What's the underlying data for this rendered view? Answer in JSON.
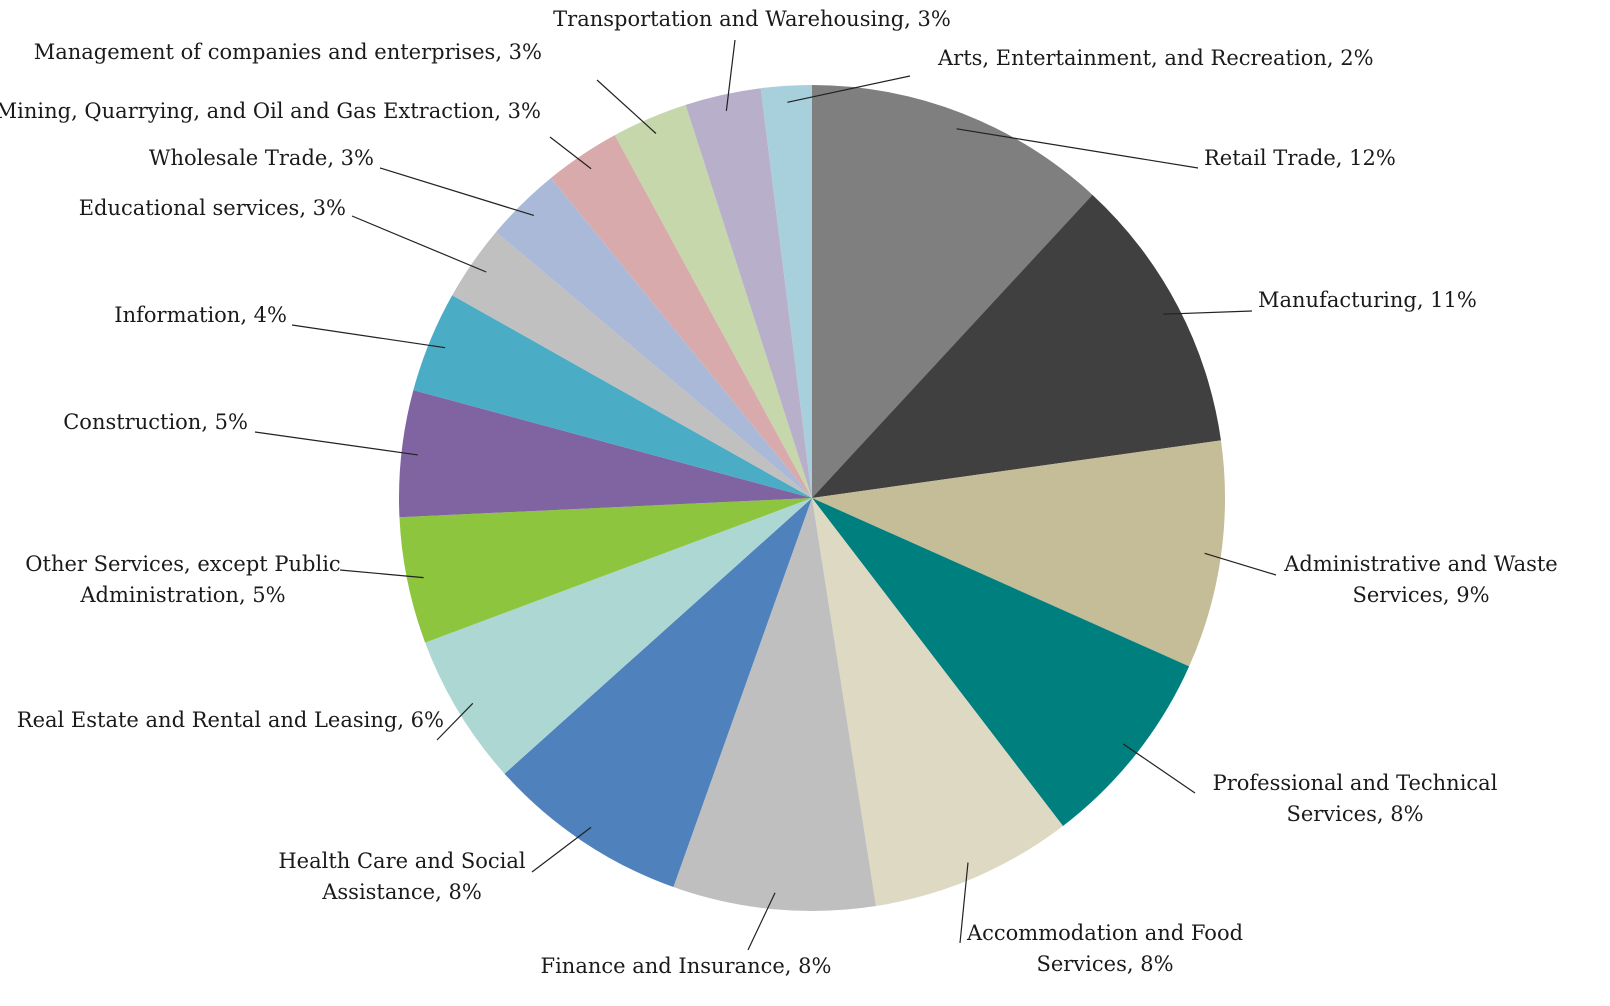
{
  "chart_data": {
    "type": "pie",
    "categories": [
      "Retail Trade",
      "Manufacturing",
      "Administrative and Waste Services",
      "Professional and Technical Services",
      "Accommodation and Food Services",
      "Finance and Insurance",
      "Health Care and Social Assistance",
      "Real Estate and Rental and Leasing",
      "Other Services, except Public Administration",
      "Construction",
      "Information",
      "Educational services",
      "Wholesale Trade",
      "Mining, Quarrying, and Oil and Gas Extraction",
      "Management of companies and enterprises",
      "Transportation and Warehousing",
      "Arts, Entertainment, and Recreation"
    ],
    "values": [
      12,
      11,
      9,
      8,
      8,
      8,
      8,
      6,
      5,
      5,
      4,
      3,
      3,
      3,
      3,
      3,
      2
    ],
    "value_labels": [
      [
        "Retail Trade, 12%"
      ],
      [
        "Manufacturing, 11%"
      ],
      [
        "Administrative and Waste",
        "Services, 9%"
      ],
      [
        "Professional and Technical",
        "Services, 8%"
      ],
      [
        "Accommodation and Food",
        "Services, 8%"
      ],
      [
        "Finance and Insurance, 8%"
      ],
      [
        "Health Care and Social",
        "Assistance, 8%"
      ],
      [
        "Real Estate and Rental and Leasing, 6%"
      ],
      [
        "Other Services, except Public",
        "Administration, 5%"
      ],
      [
        "Construction, 5%"
      ],
      [
        "Information, 4%"
      ],
      [
        "Educational services, 3%"
      ],
      [
        "Wholesale Trade, 3%"
      ],
      [
        "Mining, Quarrying, and Oil and Gas Extraction, 3%"
      ],
      [
        "Management of companies and enterprises, 3%"
      ],
      [
        "Transportation and Warehousing, 3%"
      ],
      [
        "Arts, Entertainment, and Recreation, 2%"
      ]
    ],
    "colors": [
      "#7f7f7f",
      "#404040",
      "#c4bd97",
      "#007f7f",
      "#ddd9c3",
      "#bfbfbf",
      "#4f81bd",
      "#acd7d3",
      "#8dc53e",
      "#8064a2",
      "#4bacc6",
      "#c0c0c0",
      "#aab9d8",
      "#d9aaab",
      "#c6d7ac",
      "#b8afca",
      "#a8cfdc"
    ]
  }
}
